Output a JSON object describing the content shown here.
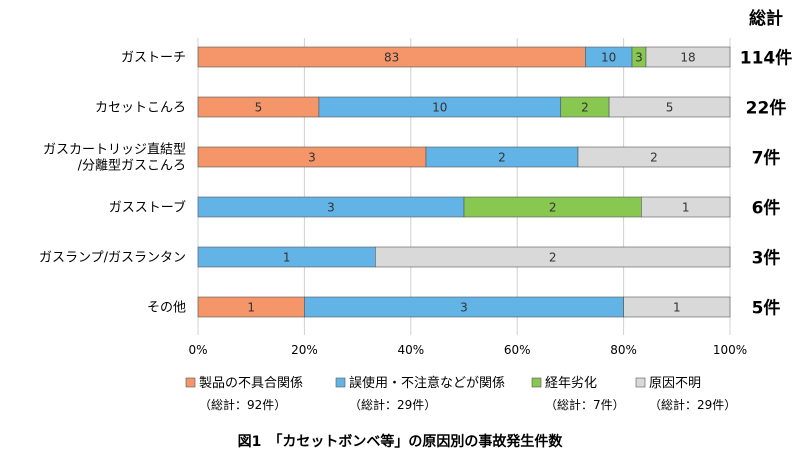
{
  "chart_data": {
    "type": "bar",
    "orientation": "horizontal",
    "stacked": "percent",
    "caption": "図1　「カセットボンベ等」の原因別の事故発生件数",
    "totals_header": "総計",
    "categories": [
      [
        "ガストーチ"
      ],
      [
        "カセットこんろ"
      ],
      [
        "ガスカートリッジ直結型",
        "/分離型ガスこんろ"
      ],
      [
        "ガスストーブ"
      ],
      [
        "ガスランプ/ガスランタン"
      ],
      [
        "その他"
      ]
    ],
    "totals": [
      "114件",
      "22件",
      "7件",
      "6件",
      "3件",
      "5件"
    ],
    "series": [
      {
        "name": "製品の不具合関係",
        "total_label": "（総計：92件）",
        "color": "#f4956a",
        "values": [
          83,
          5,
          3,
          0,
          0,
          1
        ]
      },
      {
        "name": "誤使用・不注意などが関係",
        "total_label": "（総計：29件）",
        "color": "#63b4e6",
        "values": [
          10,
          10,
          2,
          3,
          1,
          3
        ]
      },
      {
        "name": "経年劣化",
        "total_label": "（総計：7件）",
        "color": "#88c750",
        "values": [
          3,
          2,
          0,
          2,
          0,
          0
        ]
      },
      {
        "name": "原因不明",
        "total_label": "（総計：29件）",
        "color": "#d9d9d9",
        "values": [
          18,
          5,
          2,
          1,
          2,
          1
        ]
      }
    ],
    "x_ticks": [
      "0%",
      "20%",
      "40%",
      "60%",
      "80%",
      "100%"
    ],
    "xlim": [
      0,
      100
    ],
    "grid": true,
    "legend_position": "bottom"
  }
}
